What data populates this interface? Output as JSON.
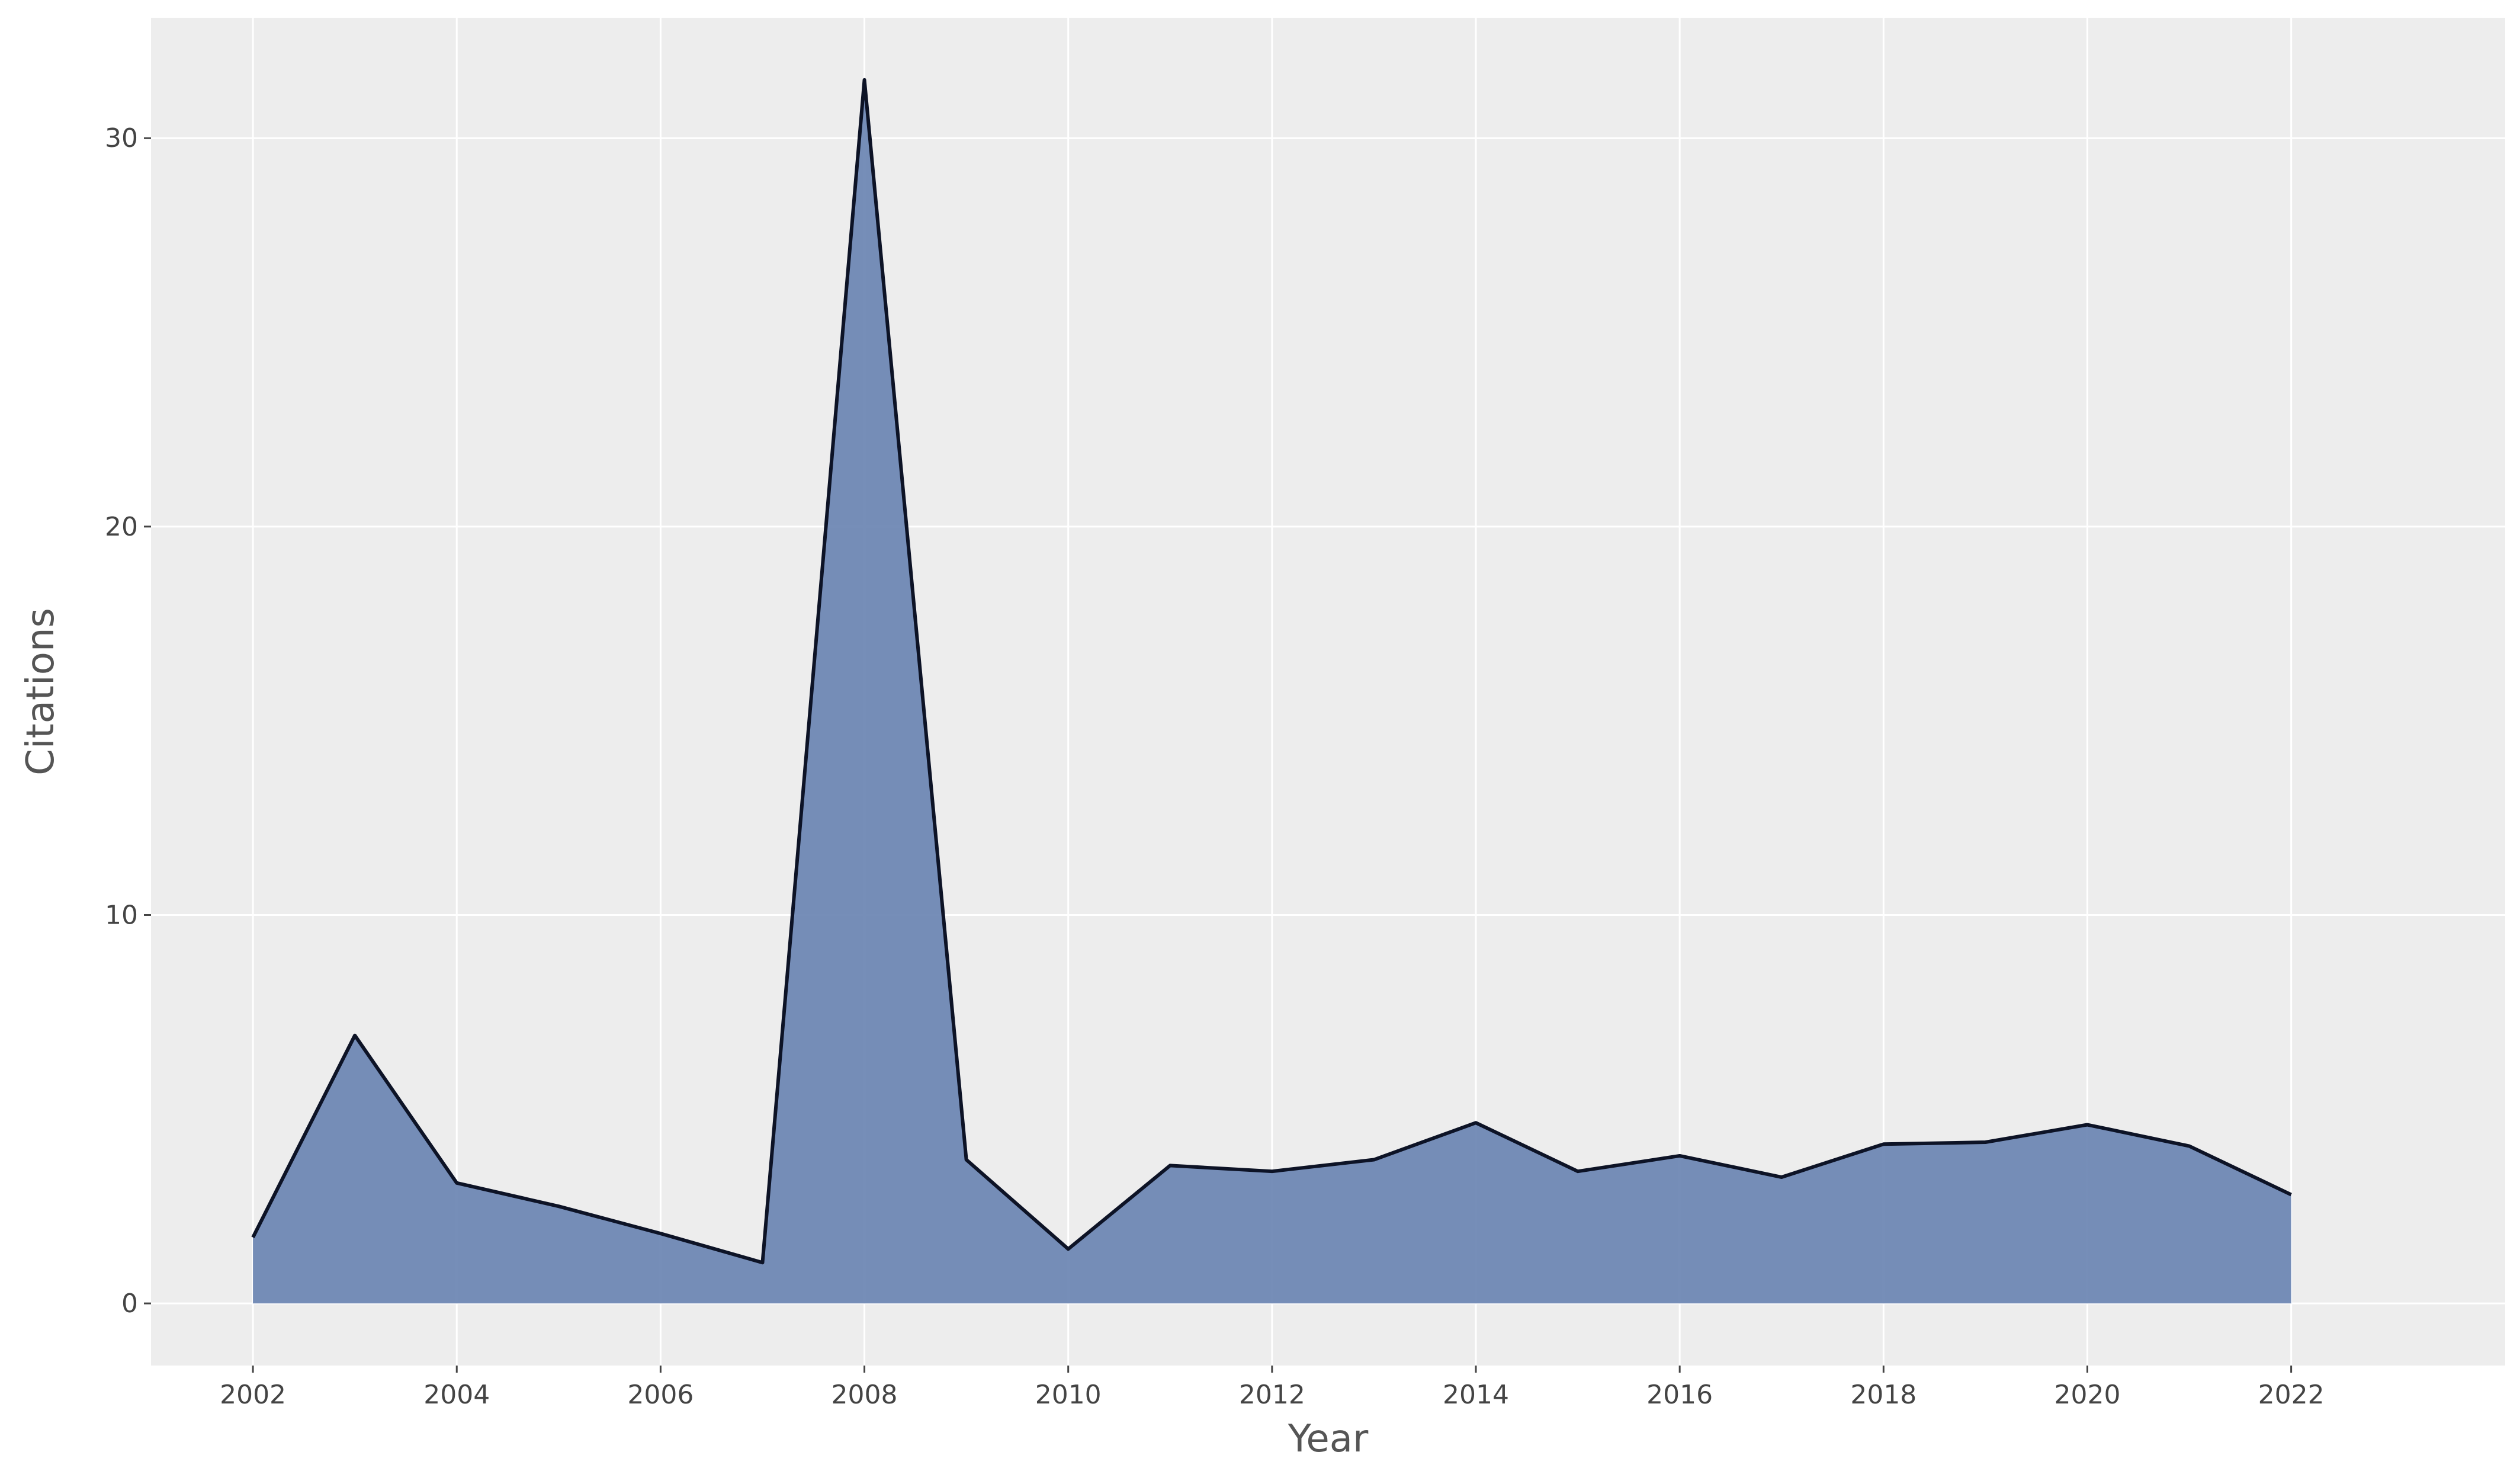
{
  "chart_data": {
    "type": "area",
    "title": "",
    "xlabel": "Year",
    "ylabel": "Citations",
    "x": [
      2002,
      2003,
      2004,
      2005,
      2006,
      2007,
      2008,
      2009,
      2010,
      2011,
      2012,
      2013,
      2014,
      2015,
      2016,
      2017,
      2018,
      2019,
      2020,
      2021,
      2022
    ],
    "series": [
      {
        "values": [
          1.7,
          6.9,
          3.1,
          2.5,
          1.8,
          1.05,
          31.5,
          3.7,
          1.4,
          3.55,
          3.4,
          3.7,
          4.65,
          3.4,
          3.8,
          3.25,
          4.1,
          4.15,
          4.6,
          4.05,
          2.8
        ]
      }
    ],
    "xlim": [
      2001,
      2024.1
    ],
    "ylim": [
      -1.6,
      33.1
    ],
    "x_ticks": [
      "2002",
      "2004",
      "2006",
      "2008",
      "2010",
      "2012",
      "2014",
      "2016",
      "2018",
      "2020",
      "2022"
    ],
    "y_ticks": [
      "0",
      "10",
      "20",
      "30"
    ],
    "grid": true,
    "legend": false,
    "colors": {
      "plot_background": "#ededed",
      "grid": "#ffffff",
      "fill": "#6f88b4",
      "line": "#0d1326"
    }
  }
}
